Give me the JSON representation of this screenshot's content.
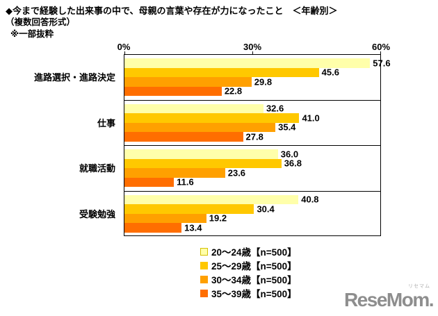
{
  "title": {
    "line1": "◆今まで経験した出来事の中で、母親の言葉や存在が力になったこと　＜年齢別＞",
    "line2": "（複数回答形式）",
    "line3": "※一部抜粋"
  },
  "chart_data": {
    "type": "bar",
    "orientation": "horizontal",
    "title": "今まで経験した出来事の中で、母親の言葉や存在が力になったこと（年齢別）",
    "categories": [
      "進路選択・進路決定",
      "仕事",
      "就職活動",
      "受験勉強"
    ],
    "series": [
      {
        "name": "20～24歳【n=500】",
        "color": "#FFFFAA",
        "swatch_border": "#d4c000",
        "values": [
          57.6,
          32.6,
          36.0,
          40.8
        ]
      },
      {
        "name": "25～29歳【n=500】",
        "color": "#FFC800",
        "swatch_border": "#FFC800",
        "values": [
          45.6,
          41.0,
          36.8,
          30.4
        ]
      },
      {
        "name": "30～34歳【n=500】",
        "color": "#FFA000",
        "swatch_border": "#FFA000",
        "values": [
          29.8,
          35.4,
          23.6,
          19.2
        ]
      },
      {
        "name": "35～39歳【n=500】",
        "color": "#FF6E00",
        "swatch_border": "#FF6E00",
        "values": [
          22.8,
          27.8,
          11.6,
          13.4
        ]
      }
    ],
    "x_axis": {
      "min": 0,
      "max": 60,
      "ticks": [
        {
          "label": "0%",
          "value": 0
        },
        {
          "label": "30%",
          "value": 30
        },
        {
          "label": "60%",
          "value": 60
        }
      ]
    },
    "value_labels": true,
    "grid": false,
    "legend_position": "bottom"
  },
  "logo": {
    "text": "ReseMom.",
    "kana": "リセマム"
  }
}
